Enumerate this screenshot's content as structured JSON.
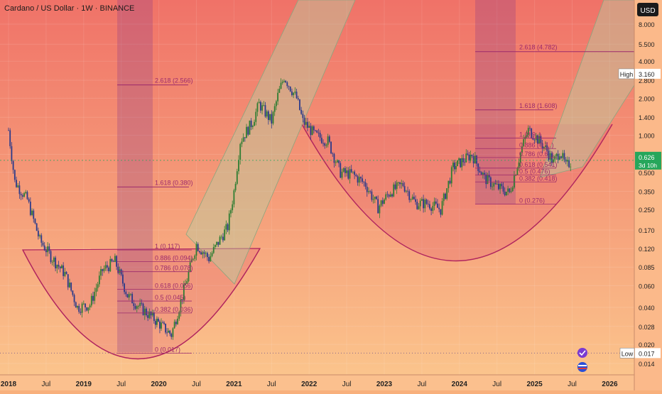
{
  "header": {
    "title": "Cardano / US Dollar · 1W · BINANCE"
  },
  "axis": {
    "currency": "USD",
    "price_labels": [
      "8.000",
      "5.500",
      "4.000",
      "2.800",
      "2.000",
      "1.400",
      "1.000",
      "0.700",
      "0.500",
      "0.350",
      "0.250",
      "0.170",
      "0.120",
      "0.085",
      "0.060",
      "0.040",
      "0.028",
      "0.020",
      "0.014"
    ],
    "high_label": "High",
    "high_value": "3.160",
    "low_label": "Low",
    "low_value": "0.017",
    "current_price": "0.626",
    "current_countdown": "3d 10h",
    "time_labels": [
      "2018",
      "Jul",
      "2019",
      "Jul",
      "2020",
      "Jul",
      "2021",
      "Jul",
      "2022",
      "Jul",
      "2023",
      "Jul",
      "2024",
      "Jul",
      "2025",
      "Jul",
      "2026"
    ]
  },
  "fib_left": {
    "top": "2.618 (2.566)",
    "mid": "1.618 (0.380)",
    "levels": [
      "1 (0.117)",
      "0.886 (0.094)",
      "0.786 (0.078)",
      "0.618 (0.056)",
      "0.5 (0.045)",
      "0.382 (0.036)",
      "0 (0.017)"
    ]
  },
  "fib_right": {
    "top": "2.618 (4.782)",
    "mid": "1.618 (1.608)",
    "levels": [
      "1 (0.9..)",
      "0.886 (0.7..)",
      "0.786 (0.6..)",
      "0.618 (0.541)",
      "0.5 (0.476)",
      "0.382 (0.418)",
      "0 (0.276)"
    ]
  },
  "colors": {
    "bg_top": "#f07268",
    "bg_bottom": "#fbc48c",
    "bull": "#2e7d32",
    "bear": "#2b3a8a",
    "fib": "#9c2a6c",
    "bowl": "#b0245e",
    "channel": "#b8cfa2",
    "axis_bg": "#fbb98a",
    "current_bg": "#26a65b"
  },
  "chart_data": {
    "type": "candlestick",
    "scale": "log",
    "title": "Cardano / US Dollar · 1W · BINANCE",
    "ylim": [
      0.012,
      11
    ],
    "x_range": [
      "2018-01",
      "2026-03"
    ],
    "series": [
      {
        "values_approx": [
          [
            "2018-01",
            1.1
          ],
          [
            "2018-02",
            0.42
          ],
          [
            "2018-04",
            0.3
          ],
          [
            "2018-06",
            0.14
          ],
          [
            "2018-08",
            0.1
          ],
          [
            "2018-10",
            0.075
          ],
          [
            "2018-12",
            0.04
          ],
          [
            "2019-02",
            0.042
          ],
          [
            "2019-04",
            0.08
          ],
          [
            "2019-06",
            0.095
          ],
          [
            "2019-08",
            0.05
          ],
          [
            "2019-10",
            0.04
          ],
          [
            "2019-12",
            0.033
          ],
          [
            "2020-03",
            0.024
          ],
          [
            "2020-05",
            0.055
          ],
          [
            "2020-07",
            0.13
          ],
          [
            "2020-09",
            0.1
          ],
          [
            "2020-11",
            0.15
          ],
          [
            "2020-12",
            0.18
          ],
          [
            "2021-01",
            0.35
          ],
          [
            "2021-02",
            0.9
          ],
          [
            "2021-04",
            1.3
          ],
          [
            "2021-05",
            1.8
          ],
          [
            "2021-07",
            1.3
          ],
          [
            "2021-08",
            2.1
          ],
          [
            "2021-09",
            3.0
          ],
          [
            "2021-11",
            2.0
          ],
          [
            "2021-12",
            1.3
          ],
          [
            "2022-02",
            1.0
          ],
          [
            "2022-04",
            0.9
          ],
          [
            "2022-06",
            0.5
          ],
          [
            "2022-08",
            0.48
          ],
          [
            "2022-10",
            0.4
          ],
          [
            "2022-12",
            0.26
          ],
          [
            "2023-02",
            0.35
          ],
          [
            "2023-04",
            0.4
          ],
          [
            "2023-06",
            0.28
          ],
          [
            "2023-08",
            0.28
          ],
          [
            "2023-10",
            0.25
          ],
          [
            "2023-12",
            0.55
          ],
          [
            "2024-03",
            0.7
          ],
          [
            "2024-05",
            0.45
          ],
          [
            "2024-07",
            0.38
          ],
          [
            "2024-09",
            0.34
          ],
          [
            "2024-11",
            0.8
          ],
          [
            "2024-12",
            1.1
          ],
          [
            "2025-01",
            1.0
          ],
          [
            "2025-03",
            0.75
          ],
          [
            "2025-04",
            0.6
          ],
          [
            "2025-05",
            0.75
          ],
          [
            "2025-06",
            0.56
          ],
          [
            "2025-07",
            0.626
          ]
        ]
      }
    ],
    "annotations": {
      "high": 3.16,
      "low": 0.017,
      "last": 0.626
    }
  }
}
